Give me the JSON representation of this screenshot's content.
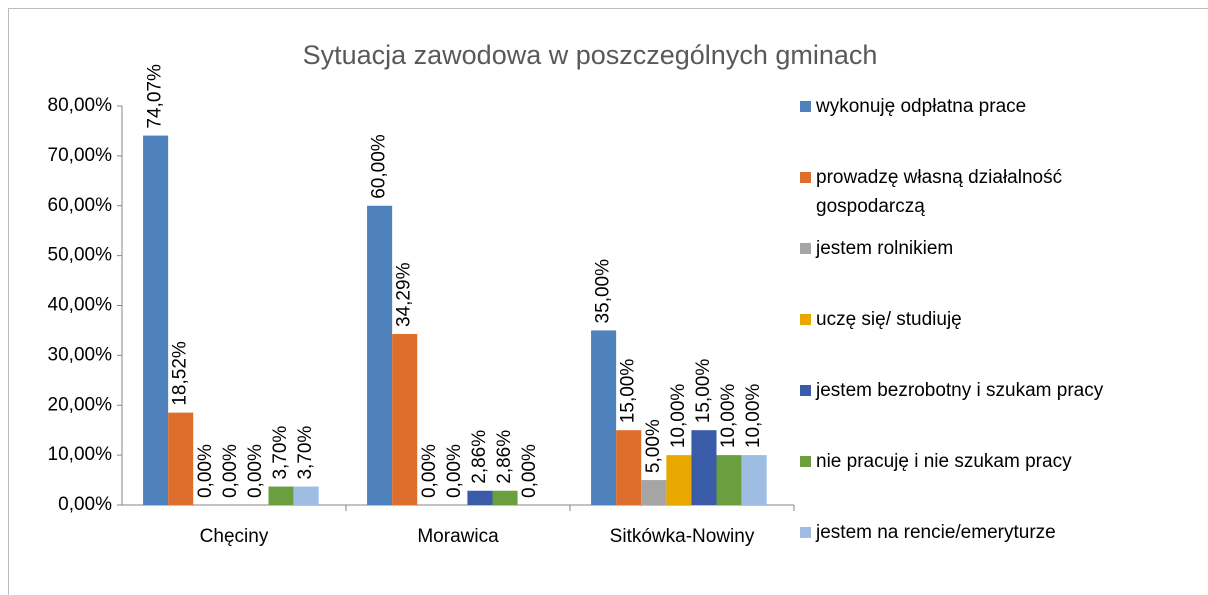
{
  "chart_data": {
    "type": "bar",
    "title": "Sytuacja zawodowa w poszczególnych gminach",
    "categories": [
      "Chęciny",
      "Morawica",
      "Sitkówka-Nowiny"
    ],
    "series": [
      {
        "name": "wykonuję odpłatna prace",
        "color": "#4f81bd",
        "values": [
          74.07,
          60,
          35
        ],
        "value_labels": [
          "74,07%",
          "60,00%",
          "35,00%"
        ]
      },
      {
        "name": "prowadzę własną działalność gospodarczą",
        "color": "#dd6e2c",
        "values": [
          18.52,
          34.29,
          15
        ],
        "value_labels": [
          "18,52%",
          "34,29%",
          "15,00%"
        ]
      },
      {
        "name": "jestem rolnikiem",
        "color": "#a5a5a5",
        "values": [
          0,
          0,
          5
        ],
        "value_labels": [
          "0,00%",
          "0,00%",
          "5,00%"
        ]
      },
      {
        "name": "uczę się/ studiuję",
        "color": "#e8a800",
        "values": [
          0,
          0,
          10
        ],
        "value_labels": [
          "0,00%",
          "0,00%",
          "10,00%"
        ]
      },
      {
        "name": "jestem bezrobotny i szukam pracy",
        "color": "#3a5ba8",
        "values": [
          0,
          2.86,
          15
        ],
        "value_labels": [
          "0,00%",
          "2,86%",
          "15,00%"
        ]
      },
      {
        "name": "nie pracuję i nie szukam pracy",
        "color": "#6b9e3f",
        "values": [
          3.7,
          2.86,
          10
        ],
        "value_labels": [
          "3,70%",
          "2,86%",
          "10,00%"
        ]
      },
      {
        "name": "jestem na rencie/emeryturze",
        "color": "#9dbde3",
        "values": [
          3.7,
          0,
          10
        ],
        "value_labels": [
          "3,70%",
          "0,00%",
          "10,00%"
        ]
      }
    ],
    "ylim": [
      0,
      80
    ],
    "yticks": [
      {
        "value": 0,
        "label": "0,00%"
      },
      {
        "value": 10,
        "label": "10,00%"
      },
      {
        "value": 20,
        "label": "20,00%"
      },
      {
        "value": 30,
        "label": "30,00%"
      },
      {
        "value": 40,
        "label": "40,00%"
      },
      {
        "value": 50,
        "label": "50,00%"
      },
      {
        "value": 60,
        "label": "60,00%"
      },
      {
        "value": 70,
        "label": "70,00%"
      },
      {
        "value": 80,
        "label": "80,00%"
      }
    ],
    "grid": false,
    "legend": "right"
  }
}
